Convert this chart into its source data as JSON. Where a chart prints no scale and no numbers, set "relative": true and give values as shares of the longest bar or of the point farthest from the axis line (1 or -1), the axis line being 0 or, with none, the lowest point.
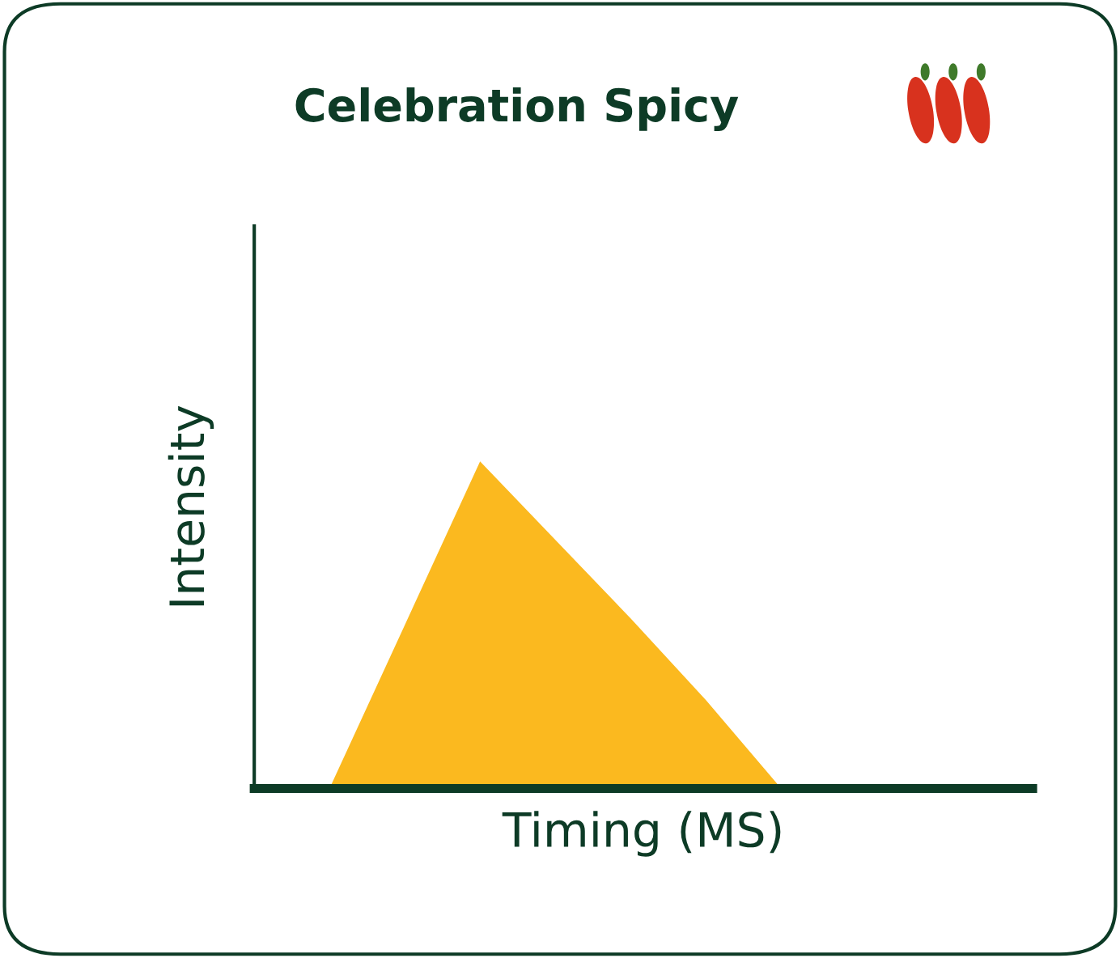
{
  "chart_data": {
    "type": "area",
    "title": "Celebration Spicy",
    "xlabel": "Timing (MS)",
    "ylabel": "Intensity",
    "relative": true,
    "categories": [
      null,
      null,
      null,
      null,
      null,
      null,
      null,
      null,
      null,
      null,
      null
    ],
    "series": [
      {
        "color": "#fbb91f",
        "values": [
          0,
          0,
          0.5,
          1,
          0.76,
          0.52,
          0.27,
          0,
          0,
          0,
          0
        ]
      }
    ],
    "grid": false,
    "legend": false,
    "tick_labels": false
  }
}
